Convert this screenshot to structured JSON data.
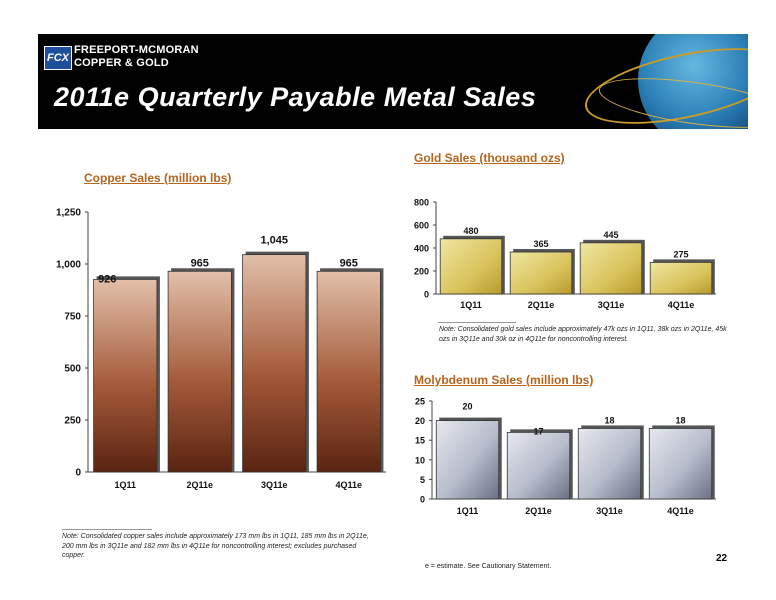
{
  "header": {
    "logo_mark": "FCX",
    "logo_line1": "FREEPORT-MCMORAN",
    "logo_line2": "COPPER & GOLD",
    "title": "2011e Quarterly Payable Metal Sales"
  },
  "copper": {
    "title": "Copper Sales (million lbs)",
    "note": "Note: Consolidated copper sales include approximately 173 mm lbs in 1Q11, 185 mm lbs in 2Q11e, 200 mm lbs in 3Q11e and 182 mm lbs in 4Q11e for noncontrolling interest; excludes purchased copper."
  },
  "gold": {
    "title": "Gold Sales (thousand ozs)",
    "note": "Note: Consolidated gold sales include approximately 47k ozs in 1Q11, 38k ozs in 2Q11e, 45k ozs in 3Q11e and 30k oz in 4Q11e for noncontrolling interest."
  },
  "moly": {
    "title": "Molybdenum Sales (million lbs)"
  },
  "footer": {
    "estimate_note": "e = estimate. See Cautionary Statement.",
    "page_number": "22"
  },
  "colors": {
    "copper_top": "#e2bfa9",
    "copper_bottom": "#5a2412",
    "gold_light": "#efe6a2",
    "gold_dark": "#b89a2c",
    "moly_light": "#e6e8ef",
    "moly_dark": "#6a6f84",
    "section_title": "#b5651d"
  },
  "chart_data": [
    {
      "type": "bar",
      "title": "Copper Sales (million lbs)",
      "categories": [
        "1Q11",
        "2Q11e",
        "3Q11e",
        "4Q11e"
      ],
      "values": [
        926,
        965,
        1045,
        965
      ],
      "value_labels": [
        "926",
        "965",
        "1,045",
        "965"
      ],
      "yticks": [
        "0",
        "250",
        "500",
        "750",
        "1,000",
        "1,250"
      ],
      "ylim": [
        0,
        1250
      ]
    },
    {
      "type": "bar",
      "title": "Gold Sales (thousand ozs)",
      "categories": [
        "1Q11",
        "2Q11e",
        "3Q11e",
        "4Q11e"
      ],
      "values": [
        480,
        365,
        445,
        275
      ],
      "value_labels": [
        "480",
        "365",
        "445",
        "275"
      ],
      "yticks": [
        "0",
        "200",
        "400",
        "600",
        "800"
      ],
      "ylim": [
        0,
        800
      ]
    },
    {
      "type": "bar",
      "title": "Molybdenum Sales (million lbs)",
      "categories": [
        "1Q11",
        "2Q11e",
        "3Q11e",
        "4Q11e"
      ],
      "values": [
        20,
        17,
        18,
        18
      ],
      "value_labels": [
        "20",
        "17",
        "18",
        "18"
      ],
      "yticks": [
        "0",
        "5",
        "10",
        "15",
        "20",
        "25"
      ],
      "ylim": [
        0,
        25
      ]
    }
  ]
}
